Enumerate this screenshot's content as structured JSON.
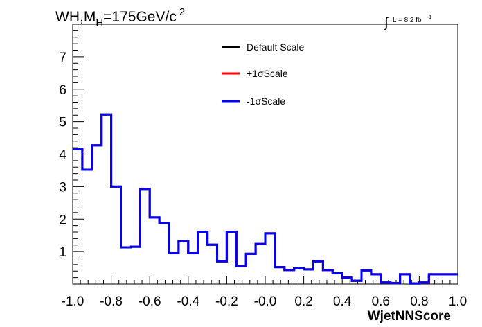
{
  "chart_data": {
    "type": "line",
    "title": "WH,M",
    "title_subscript": "H",
    "title_rest": "=175GeV/c",
    "title_superscript": "2",
    "lumi_integral": "∫",
    "lumi_label": "L = 8.2 fb",
    "lumi_exponent": "-1",
    "xlabel": "WjetNNScore",
    "ylabel": "",
    "xlim": [
      -1.0,
      1.0
    ],
    "ylim": [
      0,
      8.0
    ],
    "x_ticks": [
      "-1.0",
      "-0.8",
      "-0.6",
      "-0.4",
      "-0.2",
      "-0.0",
      "0.2",
      "0.4",
      "0.6",
      "0.8",
      "1.0"
    ],
    "y_ticks": [
      "1",
      "2",
      "3",
      "4",
      "5",
      "6",
      "7"
    ],
    "bin_edges": [
      -1.0,
      -0.95,
      -0.9,
      -0.85,
      -0.8,
      -0.75,
      -0.7,
      -0.65,
      -0.6,
      -0.55,
      -0.5,
      -0.45,
      -0.4,
      -0.35,
      -0.3,
      -0.25,
      -0.2,
      -0.15,
      -0.1,
      -0.05,
      0.0,
      0.05,
      0.1,
      0.15,
      0.2,
      0.25,
      0.3,
      0.35,
      0.4,
      0.45,
      0.5,
      0.55,
      0.6,
      0.65,
      0.7,
      0.75,
      0.8,
      0.85,
      0.9,
      0.95,
      1.0
    ],
    "series": [
      {
        "name": "Default Scale",
        "color": "#000000",
        "values": [
          4.15,
          3.52,
          4.27,
          5.22,
          3.0,
          1.13,
          1.15,
          2.93,
          2.05,
          1.88,
          0.95,
          1.32,
          0.95,
          1.61,
          1.21,
          0.7,
          1.61,
          0.55,
          0.93,
          1.23,
          1.56,
          0.52,
          0.43,
          0.48,
          0.45,
          0.7,
          0.43,
          0.33,
          0.2,
          0.1,
          0.42,
          0.3,
          0.05,
          0.03,
          0.3,
          0.02,
          0.05,
          0.3,
          0.3,
          0.3
        ]
      },
      {
        "name": "+1σScale",
        "color": "#ff0000",
        "values": [
          4.15,
          3.52,
          4.27,
          5.22,
          3.0,
          1.13,
          1.15,
          2.93,
          2.05,
          1.88,
          0.95,
          1.32,
          0.95,
          1.61,
          1.21,
          0.7,
          1.61,
          0.55,
          0.93,
          1.23,
          1.56,
          0.52,
          0.43,
          0.48,
          0.45,
          0.7,
          0.43,
          0.33,
          0.2,
          0.1,
          0.42,
          0.3,
          0.05,
          0.03,
          0.3,
          0.02,
          0.05,
          0.3,
          0.3,
          0.3
        ]
      },
      {
        "name": "-1σScale",
        "color": "#0000ff",
        "values": [
          4.15,
          3.52,
          4.27,
          5.22,
          3.0,
          1.13,
          1.15,
          2.93,
          2.05,
          1.88,
          0.95,
          1.32,
          0.95,
          1.61,
          1.21,
          0.7,
          1.61,
          0.55,
          0.93,
          1.23,
          1.56,
          0.52,
          0.43,
          0.48,
          0.45,
          0.7,
          0.43,
          0.33,
          0.2,
          0.1,
          0.42,
          0.3,
          0.05,
          0.03,
          0.3,
          0.02,
          0.05,
          0.3,
          0.3,
          0.3
        ]
      }
    ],
    "legend_position": "top-center",
    "grid": false
  }
}
